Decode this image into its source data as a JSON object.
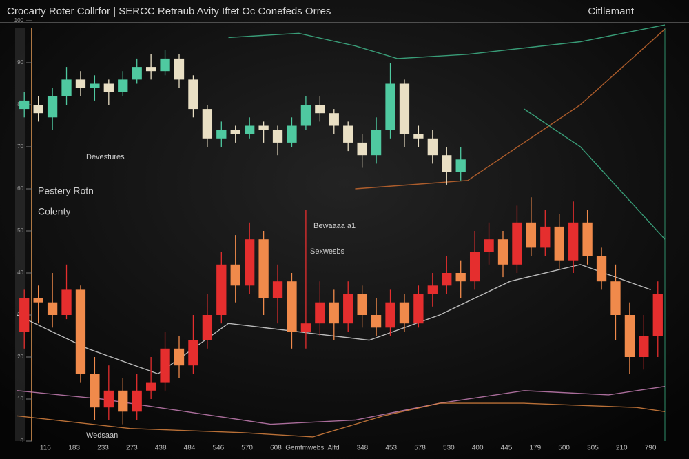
{
  "chart_data": {
    "type": "candlestick",
    "title": "Crocarty Roter Collrfor | SERCC Retraub Avity Iftet Oc Conefeds Orres",
    "legend_text": "Citllemant",
    "annotations": [
      "Devestures",
      "Pestery Rotn",
      "Colenty",
      "Bewaaaa a1",
      "Sexwesbs",
      "Wedsaan"
    ],
    "x_labels": [
      "116",
      "183",
      "233",
      "273",
      "438",
      "484",
      "546",
      "570",
      "608",
      "Gemfmwebs",
      "Alfd",
      "348",
      "453",
      "578",
      "530",
      "400",
      "445",
      "179",
      "500",
      "305",
      "210",
      "790"
    ],
    "xlim": [
      0,
      46
    ],
    "ylim": [
      0,
      100
    ],
    "yticks": [
      0,
      10,
      20,
      30,
      40,
      50,
      60,
      70,
      80,
      90,
      100
    ],
    "series": [
      {
        "up_color": "#4fc9a0",
        "down_color": "#e9dfc4",
        "open": [
          79,
          80,
          77,
          82,
          86,
          84,
          85,
          83,
          86,
          89,
          88,
          91,
          86,
          79,
          72,
          74,
          73,
          75,
          74,
          71,
          75,
          80,
          78,
          75,
          71,
          68,
          74,
          85,
          73,
          72,
          68,
          64
        ],
        "high": [
          83,
          82,
          84,
          89,
          88,
          87,
          86,
          88,
          91,
          92,
          93,
          92,
          87,
          80,
          76,
          75,
          77,
          76,
          75,
          77,
          82,
          82,
          79,
          76,
          73,
          77,
          90,
          86,
          75,
          74,
          70,
          70
        ],
        "low": [
          77,
          76,
          74,
          80,
          82,
          81,
          80,
          82,
          85,
          86,
          87,
          84,
          77,
          70,
          70,
          71,
          72,
          71,
          68,
          70,
          74,
          76,
          73,
          69,
          65,
          66,
          72,
          70,
          70,
          66,
          61,
          62
        ],
        "close": [
          81,
          78,
          82,
          86,
          84,
          85,
          83,
          86,
          89,
          88,
          91,
          86,
          79,
          72,
          74,
          73,
          75,
          74,
          71,
          75,
          80,
          78,
          75,
          71,
          68,
          74,
          85,
          73,
          72,
          68,
          64,
          67
        ]
      },
      {
        "up_color": "#e52e2e",
        "down_color": "#f08a4b",
        "open": [
          26,
          34,
          33,
          30,
          36,
          16,
          8,
          12,
          7,
          12,
          14,
          22,
          18,
          24,
          30,
          42,
          37,
          48,
          34,
          38,
          26,
          28,
          33,
          28,
          35,
          30,
          27,
          33,
          28,
          35,
          37,
          40,
          38,
          45,
          48,
          42,
          52,
          46,
          51,
          43,
          52,
          44,
          38,
          30,
          20,
          25
        ],
        "high": [
          36,
          37,
          40,
          42,
          37,
          20,
          18,
          15,
          16,
          20,
          26,
          25,
          30,
          35,
          45,
          49,
          52,
          50,
          42,
          40,
          55,
          38,
          36,
          38,
          37,
          34,
          36,
          35,
          37,
          40,
          44,
          43,
          50,
          52,
          50,
          56,
          58,
          55,
          54,
          57,
          55,
          46,
          42,
          33,
          30,
          38
        ],
        "low": [
          22,
          28,
          27,
          29,
          14,
          5,
          5,
          4,
          5,
          10,
          12,
          15,
          16,
          22,
          28,
          33,
          35,
          30,
          28,
          22,
          22,
          25,
          24,
          26,
          27,
          25,
          25,
          26,
          27,
          32,
          35,
          34,
          36,
          42,
          39,
          40,
          44,
          44,
          41,
          40,
          42,
          36,
          24,
          16,
          17,
          20
        ],
        "close": [
          34,
          33,
          30,
          36,
          16,
          8,
          12,
          7,
          12,
          14,
          22,
          18,
          24,
          30,
          42,
          37,
          48,
          34,
          38,
          26,
          28,
          33,
          28,
          35,
          30,
          27,
          33,
          28,
          35,
          37,
          40,
          38,
          45,
          48,
          42,
          52,
          46,
          51,
          43,
          52,
          44,
          38,
          30,
          20,
          25,
          35
        ]
      }
    ],
    "lines": [
      {
        "color": "#c77fb5",
        "x": [
          0,
          6,
          12,
          18,
          24,
          30,
          36,
          42,
          46
        ],
        "values": [
          12,
          10,
          7,
          4,
          5,
          9,
          12,
          11,
          13
        ]
      },
      {
        "color": "#d9833f",
        "x": [
          0,
          8,
          16,
          21,
          26,
          30,
          36,
          44,
          46
        ],
        "values": [
          6,
          3,
          2,
          1,
          6,
          9,
          9,
          8,
          7
        ]
      },
      {
        "color": "#3fb58a",
        "x": [
          15,
          20,
          24,
          27,
          32,
          40,
          46
        ],
        "values": [
          96,
          97,
          94,
          91,
          92,
          95,
          99
        ]
      },
      {
        "color": "#c7692f",
        "x": [
          24,
          32,
          40,
          46
        ],
        "values": [
          60,
          62,
          80,
          98
        ]
      },
      {
        "color": "#d8d8d8",
        "x": [
          0,
          5,
          10,
          15,
          20,
          25,
          30,
          35,
          40,
          45
        ],
        "values": [
          30,
          22,
          16,
          28,
          26,
          24,
          30,
          38,
          42,
          36
        ]
      },
      {
        "color": "#3fb58a",
        "x": [
          36,
          40,
          46
        ],
        "values": [
          79,
          70,
          48
        ]
      }
    ]
  }
}
